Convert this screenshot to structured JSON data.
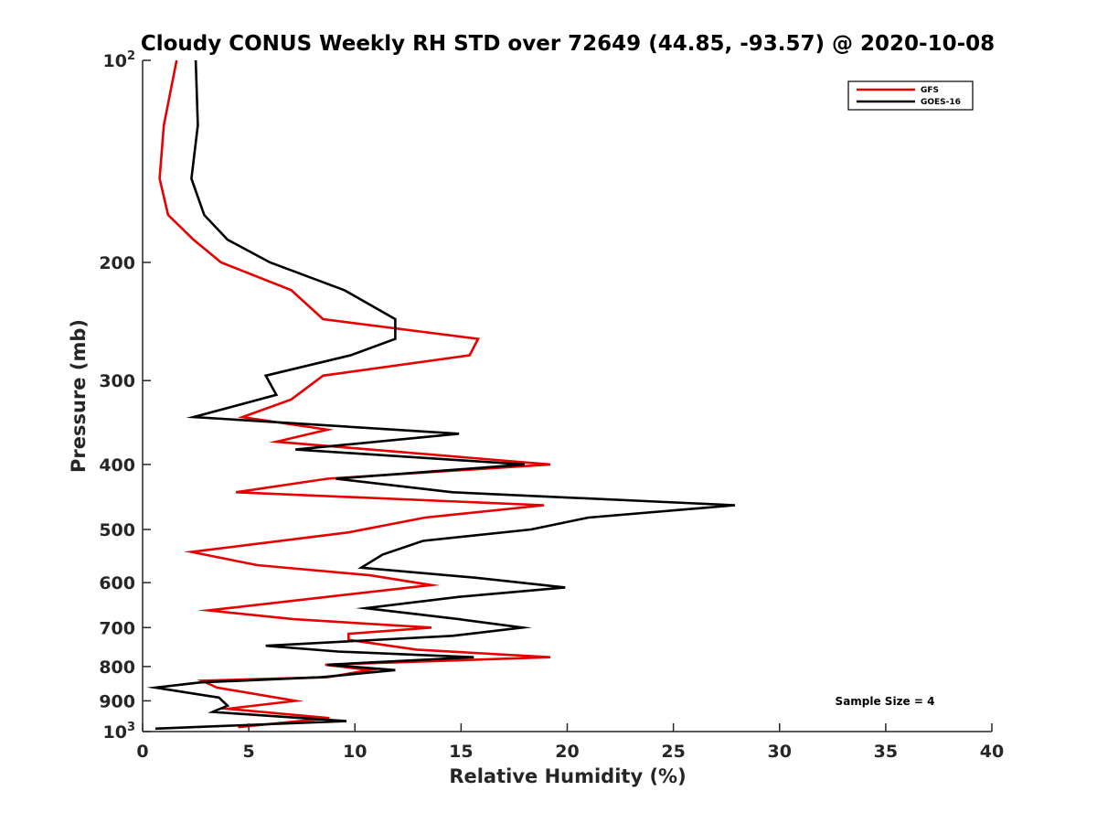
{
  "chart_data": {
    "type": "line",
    "title": "Cloudy CONUS Weekly RH STD over 72649 (44.85, -93.57) @ 2020-10-08",
    "xlabel": "Relative Humidity (%)",
    "ylabel": "Pressure (mb)",
    "xlim": [
      0,
      40
    ],
    "ylim": [
      100,
      1000
    ],
    "y_scale": "log",
    "y_reversed": true,
    "grid": false,
    "legend_position": "top-right",
    "x_ticks": [
      "0",
      "5",
      "10",
      "15",
      "20",
      "25",
      "30",
      "35",
      "40"
    ],
    "y_ticks": [
      {
        "value": 100,
        "base": "10",
        "exp": "2"
      },
      {
        "value": 200,
        "label": "200"
      },
      {
        "value": 300,
        "label": "300"
      },
      {
        "value": 400,
        "label": "400"
      },
      {
        "value": 500,
        "label": "500"
      },
      {
        "value": 600,
        "label": "600"
      },
      {
        "value": 700,
        "label": "700"
      },
      {
        "value": 800,
        "label": "800"
      },
      {
        "value": 900,
        "label": "900"
      },
      {
        "value": 1000,
        "base": "10",
        "exp": "3"
      }
    ],
    "series": [
      {
        "name": "GFS",
        "color": "#e60000",
        "points": [
          [
            1.6,
            100
          ],
          [
            1.0,
            125
          ],
          [
            0.8,
            150
          ],
          [
            1.2,
            170
          ],
          [
            2.4,
            185
          ],
          [
            3.7,
            200
          ],
          [
            7.0,
            220
          ],
          [
            8.5,
            243
          ],
          [
            15.8,
            260
          ],
          [
            15.4,
            275
          ],
          [
            8.5,
            295
          ],
          [
            7.0,
            320
          ],
          [
            4.7,
            340
          ],
          [
            8.7,
            355
          ],
          [
            6.3,
            370
          ],
          [
            19.2,
            400
          ],
          [
            8.7,
            420
          ],
          [
            4.4,
            440
          ],
          [
            18.9,
            460
          ],
          [
            13.3,
            480
          ],
          [
            9.7,
            505
          ],
          [
            2.3,
            540
          ],
          [
            5.4,
            565
          ],
          [
            10.7,
            585
          ],
          [
            13.6,
            605
          ],
          [
            8.7,
            630
          ],
          [
            3.1,
            660
          ],
          [
            7.1,
            680
          ],
          [
            13.6,
            700
          ],
          [
            9.7,
            715
          ],
          [
            9.7,
            730
          ],
          [
            12.9,
            755
          ],
          [
            19.2,
            775
          ],
          [
            8.6,
            795
          ],
          [
            10.7,
            810
          ],
          [
            8.7,
            830
          ],
          [
            2.8,
            840
          ],
          [
            3.5,
            860
          ],
          [
            7.2,
            900
          ],
          [
            4.0,
            925
          ],
          [
            8.8,
            955
          ],
          [
            4.5,
            985
          ]
        ]
      },
      {
        "name": "GOES-16",
        "color": "#000000",
        "points": [
          [
            2.5,
            100
          ],
          [
            2.6,
            125
          ],
          [
            2.3,
            150
          ],
          [
            2.9,
            170
          ],
          [
            4.0,
            185
          ],
          [
            6.0,
            200
          ],
          [
            9.5,
            220
          ],
          [
            11.9,
            243
          ],
          [
            11.9,
            260
          ],
          [
            9.8,
            275
          ],
          [
            5.8,
            295
          ],
          [
            6.3,
            315
          ],
          [
            2.4,
            340
          ],
          [
            5.7,
            345
          ],
          [
            14.9,
            360
          ],
          [
            7.2,
            380
          ],
          [
            18.0,
            400
          ],
          [
            9.1,
            420
          ],
          [
            14.6,
            440
          ],
          [
            27.9,
            460
          ],
          [
            21.0,
            480
          ],
          [
            18.3,
            500
          ],
          [
            13.2,
            520
          ],
          [
            11.3,
            545
          ],
          [
            10.3,
            570
          ],
          [
            15.7,
            590
          ],
          [
            19.9,
            610
          ],
          [
            14.9,
            630
          ],
          [
            10.5,
            655
          ],
          [
            14.9,
            680
          ],
          [
            17.9,
            700
          ],
          [
            14.6,
            720
          ],
          [
            5.8,
            745
          ],
          [
            9.2,
            760
          ],
          [
            15.6,
            775
          ],
          [
            8.7,
            795
          ],
          [
            11.9,
            810
          ],
          [
            8.4,
            830
          ],
          [
            2.7,
            845
          ],
          [
            0.6,
            860
          ],
          [
            3.6,
            890
          ],
          [
            4.0,
            915
          ],
          [
            3.3,
            935
          ],
          [
            9.6,
            965
          ],
          [
            0.6,
            990
          ]
        ]
      }
    ],
    "annotations": [
      {
        "text": "Sample Size = 4",
        "x": 32.5,
        "y": 900
      }
    ]
  }
}
